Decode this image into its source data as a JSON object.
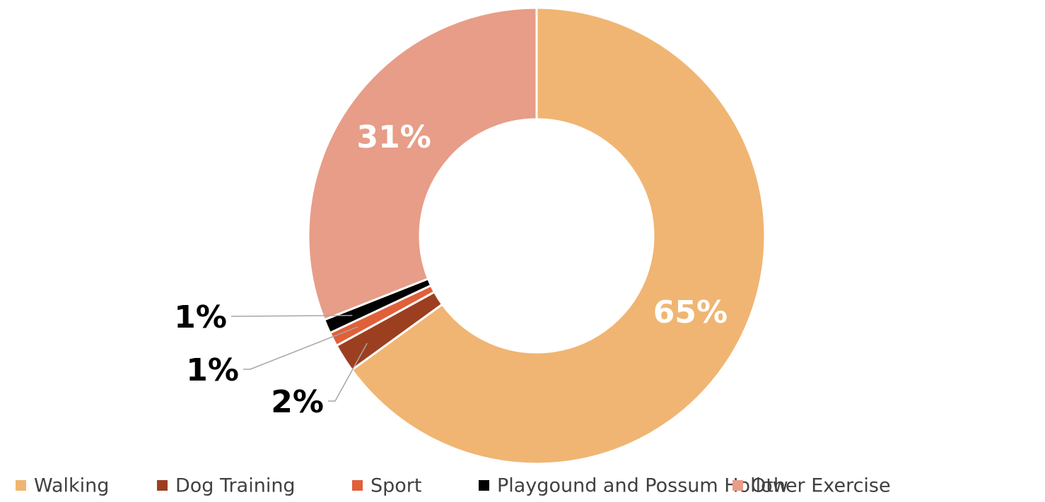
{
  "chart_data": {
    "type": "pie",
    "donut": true,
    "categories": [
      "Walking",
      "Dog Training",
      "Sport",
      "Playgound and Possum Hollow",
      "Other Exercise"
    ],
    "values": [
      65,
      2,
      1,
      1,
      31
    ],
    "value_labels": [
      "65%",
      "2%",
      "1%",
      "1%",
      "31%"
    ],
    "colors": [
      "#f0b572",
      "#9c3f20",
      "#e0603a",
      "#000000",
      "#e79d88"
    ],
    "legend": "bottom"
  }
}
